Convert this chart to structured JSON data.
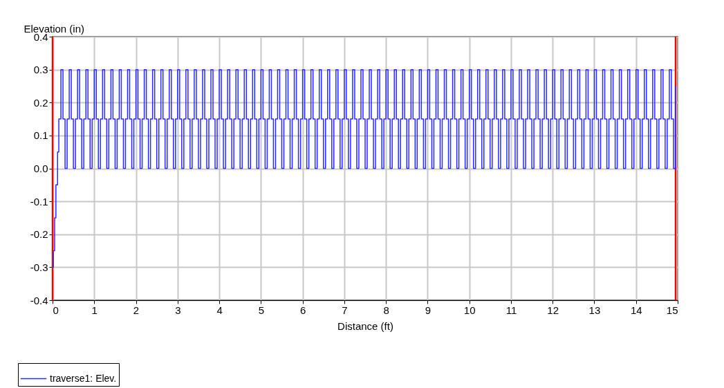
{
  "chart_data": {
    "type": "step",
    "xlabel": "Distance (ft)",
    "ylabel": "Elevation (in)",
    "xlim": [
      0,
      15
    ],
    "xticks": [
      0,
      1,
      2,
      3,
      4,
      5,
      6,
      7,
      8,
      9,
      10,
      11,
      12,
      13,
      14,
      15
    ],
    "ylim": [
      -0.4,
      0.4
    ],
    "yticks": [
      {
        "value": -0.4,
        "label": "-0.4"
      },
      {
        "value": -0.3,
        "label": "-0.3"
      },
      {
        "value": -0.2,
        "label": "-0.2"
      },
      {
        "value": -0.1,
        "label": "-0.1"
      },
      {
        "value": 0,
        "label": "0.0"
      },
      {
        "value": 0.1,
        "label": "0.1"
      },
      {
        "value": 0.2,
        "label": "0.2"
      },
      {
        "value": 0.3,
        "label": "0.3"
      },
      {
        "value": 0.4,
        "label": "0.4"
      }
    ],
    "grid": true,
    "legend": "bottom left",
    "ref_lines": [
      {
        "axis": "x",
        "value": 0,
        "color": "#ff0000"
      },
      {
        "axis": "x",
        "value": 14.95,
        "color": "#ff0000"
      }
    ],
    "series": [
      {
        "name": "traverse1: Elev.",
        "color": "#2b2bff",
        "x": [
          0,
          0.02,
          0.05,
          0.08,
          0.12,
          0.15,
          0.2,
          0.25,
          0.3,
          0.35,
          0.4,
          0.45,
          0.5,
          0.55,
          0.6,
          0.65,
          0.7,
          0.75,
          0.8,
          0.85,
          0.9,
          0.95,
          1,
          1.05,
          1.1,
          1.15,
          1.2,
          1.25,
          1.3,
          1.35,
          1.4,
          1.45,
          1.5,
          1.55,
          1.6,
          1.65,
          1.7,
          1.75,
          1.8,
          1.85,
          1.9,
          1.95,
          2,
          2.05,
          2.1,
          2.15,
          2.2,
          2.25,
          2.3,
          2.35,
          2.4,
          2.45,
          2.5,
          2.55,
          2.6,
          2.65,
          2.7,
          2.75,
          2.8,
          2.85,
          2.9,
          2.95,
          3,
          3.05,
          3.1,
          3.15,
          3.2,
          3.25,
          3.3,
          3.35,
          3.4,
          3.45,
          3.5,
          3.55,
          3.6,
          3.65,
          3.7,
          3.75,
          3.8,
          3.85,
          3.9,
          3.95,
          4,
          4.05,
          4.1,
          4.15,
          4.2,
          4.25,
          4.3,
          4.35,
          4.4,
          4.45,
          4.5,
          4.55,
          4.6,
          4.65,
          4.7,
          4.75,
          4.8,
          4.85,
          4.9,
          4.95,
          5,
          5.05,
          5.1,
          5.15,
          5.2,
          5.25,
          5.3,
          5.35,
          5.4,
          5.45,
          5.5,
          5.55,
          5.6,
          5.65,
          5.7,
          5.75,
          5.8,
          5.85,
          5.9,
          5.95,
          6,
          6.05,
          6.1,
          6.15,
          6.2,
          6.25,
          6.3,
          6.35,
          6.4,
          6.45,
          6.5,
          6.55,
          6.6,
          6.65,
          6.7,
          6.75,
          6.8,
          6.85,
          6.9,
          6.95,
          7,
          7.05,
          7.1,
          7.15,
          7.2,
          7.25,
          7.3,
          7.35,
          7.4,
          7.45,
          7.5,
          7.55,
          7.6,
          7.65,
          7.7,
          7.75,
          7.8,
          7.85,
          7.9,
          7.95,
          8,
          8.05,
          8.1,
          8.15,
          8.2,
          8.25,
          8.3,
          8.35,
          8.4,
          8.45,
          8.5,
          8.55,
          8.6,
          8.65,
          8.7,
          8.75,
          8.8,
          8.85,
          8.9,
          8.95,
          9,
          9.05,
          9.1,
          9.15,
          9.2,
          9.25,
          9.3,
          9.35,
          9.4,
          9.45,
          9.5,
          9.55,
          9.6,
          9.65,
          9.7,
          9.75,
          9.8,
          9.85,
          9.9,
          9.95,
          10,
          10.05,
          10.1,
          10.15,
          10.2,
          10.25,
          10.3,
          10.35,
          10.4,
          10.45,
          10.5,
          10.55,
          10.6,
          10.65,
          10.7,
          10.75,
          10.8,
          10.85,
          10.9,
          10.95,
          11,
          11.05,
          11.1,
          11.15,
          11.2,
          11.25,
          11.3,
          11.35,
          11.4,
          11.45,
          11.5,
          11.55,
          11.6,
          11.65,
          11.7,
          11.75,
          11.8,
          11.85,
          11.9,
          11.95,
          12,
          12.05,
          12.1,
          12.15,
          12.2,
          12.25,
          12.3,
          12.35,
          12.4,
          12.45,
          12.5,
          12.55,
          12.6,
          12.65,
          12.7,
          12.75,
          12.8,
          12.85,
          12.9,
          12.95,
          13,
          13.05,
          13.1,
          13.15,
          13.2,
          13.25,
          13.3,
          13.35,
          13.4,
          13.45,
          13.5,
          13.55,
          13.6,
          13.65,
          13.7,
          13.75,
          13.8,
          13.85,
          13.9,
          13.95,
          14,
          14.05,
          14.1,
          14.15,
          14.2,
          14.25,
          14.3,
          14.35,
          14.4,
          14.45,
          14.5,
          14.55,
          14.6,
          14.65,
          14.7,
          14.75,
          14.8,
          14.85,
          14.9,
          14.95
        ],
        "values": [
          -0.3,
          -0.25,
          -0.15,
          -0.05,
          0.05,
          0.15,
          0.3,
          0.15,
          0,
          0.15,
          0.3,
          0.15,
          0,
          0.15,
          0.3,
          0.15,
          0,
          0.15,
          0.3,
          0.15,
          0,
          0.15,
          0.3,
          0.15,
          0,
          0.15,
          0.3,
          0.15,
          0,
          0.15,
          0.3,
          0.15,
          0,
          0.15,
          0.3,
          0.15,
          0,
          0.15,
          0.3,
          0.15,
          0,
          0.15,
          0.3,
          0.15,
          0,
          0.15,
          0.3,
          0.15,
          0,
          0.15,
          0.3,
          0.15,
          0,
          0.15,
          0.3,
          0.15,
          0,
          0.15,
          0.3,
          0.15,
          0,
          0.15,
          0.3,
          0.15,
          0,
          0.15,
          0.3,
          0.15,
          0,
          0.15,
          0.3,
          0.15,
          0,
          0.15,
          0.3,
          0.15,
          0,
          0.15,
          0.3,
          0.15,
          0,
          0.15,
          0.3,
          0.15,
          0,
          0.15,
          0.3,
          0.15,
          0,
          0.15,
          0.3,
          0.15,
          0,
          0.15,
          0.3,
          0.15,
          0,
          0.15,
          0.3,
          0.15,
          0,
          0.15,
          0.3,
          0.15,
          0,
          0.15,
          0.3,
          0.15,
          0,
          0.15,
          0.3,
          0.15,
          0,
          0.15,
          0.3,
          0.15,
          0,
          0.15,
          0.3,
          0.15,
          0,
          0.15,
          0.3,
          0.15,
          0,
          0.15,
          0.3,
          0.15,
          0,
          0.15,
          0.3,
          0.15,
          0,
          0.15,
          0.3,
          0.15,
          0,
          0.15,
          0.3,
          0.15,
          0,
          0.15,
          0.3,
          0.15,
          0,
          0.15,
          0.3,
          0.15,
          0,
          0.15,
          0.3,
          0.15,
          0,
          0.15,
          0.3,
          0.15,
          0,
          0.15,
          0.3,
          0.15,
          0,
          0.15,
          0.3,
          0.15,
          0,
          0.15,
          0.3,
          0.15,
          0,
          0.15,
          0.3,
          0.15,
          0,
          0.15,
          0.3,
          0.15,
          0,
          0.15,
          0.3,
          0.15,
          0,
          0.15,
          0.3,
          0.15,
          0,
          0.15,
          0.3,
          0.15,
          0,
          0.15,
          0.3,
          0.15,
          0,
          0.15,
          0.3,
          0.15,
          0,
          0.15,
          0.3,
          0.15,
          0,
          0.15,
          0.3,
          0.15,
          0,
          0.15,
          0.3,
          0.15,
          0,
          0.15,
          0.3,
          0.15,
          0,
          0.15,
          0.3,
          0.15,
          0,
          0.15,
          0.3,
          0.15,
          0,
          0.15,
          0.3,
          0.15,
          0,
          0.15,
          0.3,
          0.15,
          0,
          0.15,
          0.3,
          0.15,
          0,
          0.15,
          0.3,
          0.15,
          0,
          0.15,
          0.3,
          0.15,
          0,
          0.15,
          0.3,
          0.15,
          0,
          0.15,
          0.3,
          0.15,
          0,
          0.15,
          0.3,
          0.15,
          0,
          0.15,
          0.3,
          0.15,
          0,
          0.15,
          0.3,
          0.15,
          0,
          0.15,
          0.3,
          0.15,
          0,
          0.15,
          0.3,
          0.15,
          0,
          0.15,
          0.3,
          0.15,
          0,
          0.15,
          0.3,
          0.15,
          0,
          0.15,
          0.3,
          0.15,
          0,
          0.15,
          0.3,
          0.15,
          0,
          0.15,
          0.3,
          0.15,
          0,
          0.15,
          0.3,
          0.15,
          0,
          0.15,
          0.3,
          0.15,
          0,
          0.15,
          0.3,
          0.15,
          0,
          0.25
        ]
      }
    ]
  }
}
